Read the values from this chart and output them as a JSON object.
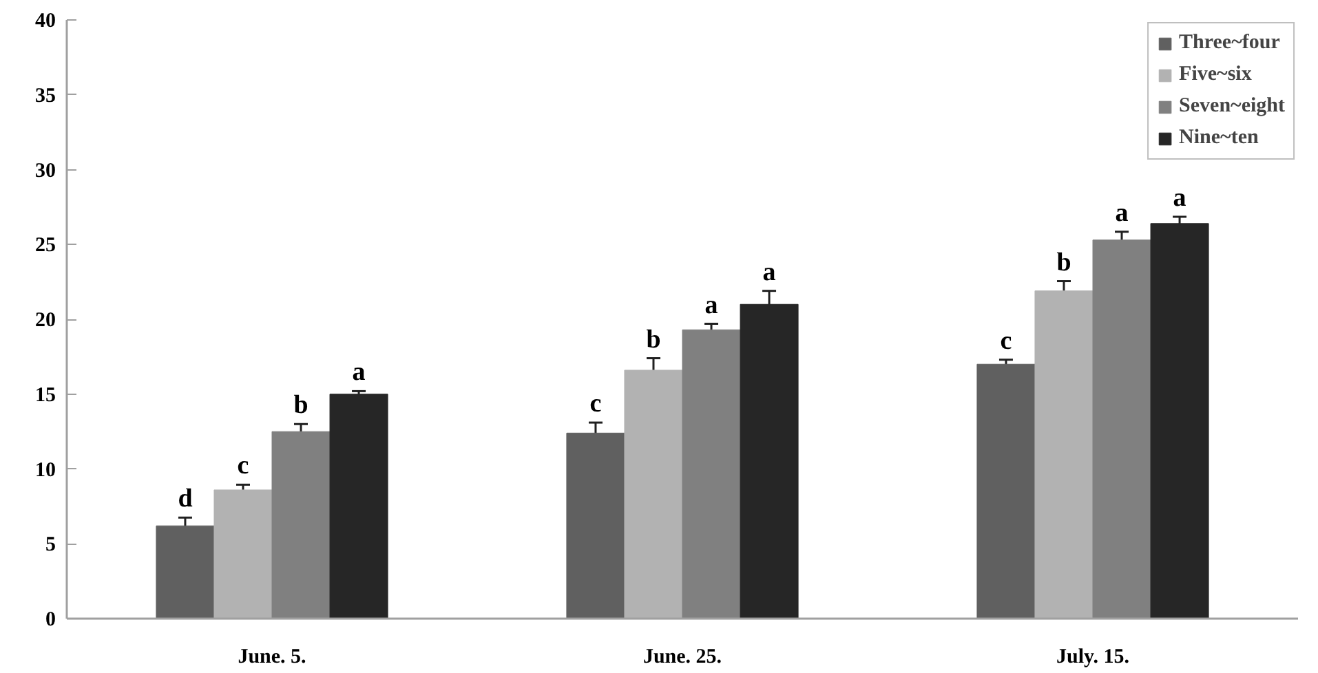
{
  "chart_data": {
    "type": "bar",
    "categories": [
      "June. 5.",
      "June. 25.",
      "July. 15."
    ],
    "ylim": [
      0,
      40
    ],
    "yticks": [
      0,
      5,
      10,
      15,
      20,
      25,
      30,
      35,
      40
    ],
    "grid": false,
    "legend": "top right",
    "series": [
      {
        "name": "Three~four",
        "color": "#606060",
        "values": [
          6.2,
          12.4,
          17.0
        ],
        "errors": [
          0.55,
          0.7,
          0.3
        ],
        "value_labels": [
          "d",
          "c",
          "c"
        ]
      },
      {
        "name": "Five~six",
        "color": "#b2b2b2",
        "values": [
          8.6,
          16.6,
          21.9
        ],
        "errors": [
          0.35,
          0.8,
          0.65
        ],
        "value_labels": [
          "c",
          "b",
          "b"
        ]
      },
      {
        "name": "Seven~eight",
        "color": "#808080",
        "values": [
          12.5,
          19.3,
          25.3
        ],
        "errors": [
          0.5,
          0.4,
          0.55
        ],
        "value_labels": [
          "b",
          "a",
          "a"
        ]
      },
      {
        "name": "Nine~ten",
        "color": "#262626",
        "values": [
          15.0,
          21.0,
          26.4
        ],
        "errors": [
          0.2,
          0.9,
          0.45
        ],
        "value_labels": [
          "a",
          "a",
          "a"
        ]
      }
    ]
  }
}
